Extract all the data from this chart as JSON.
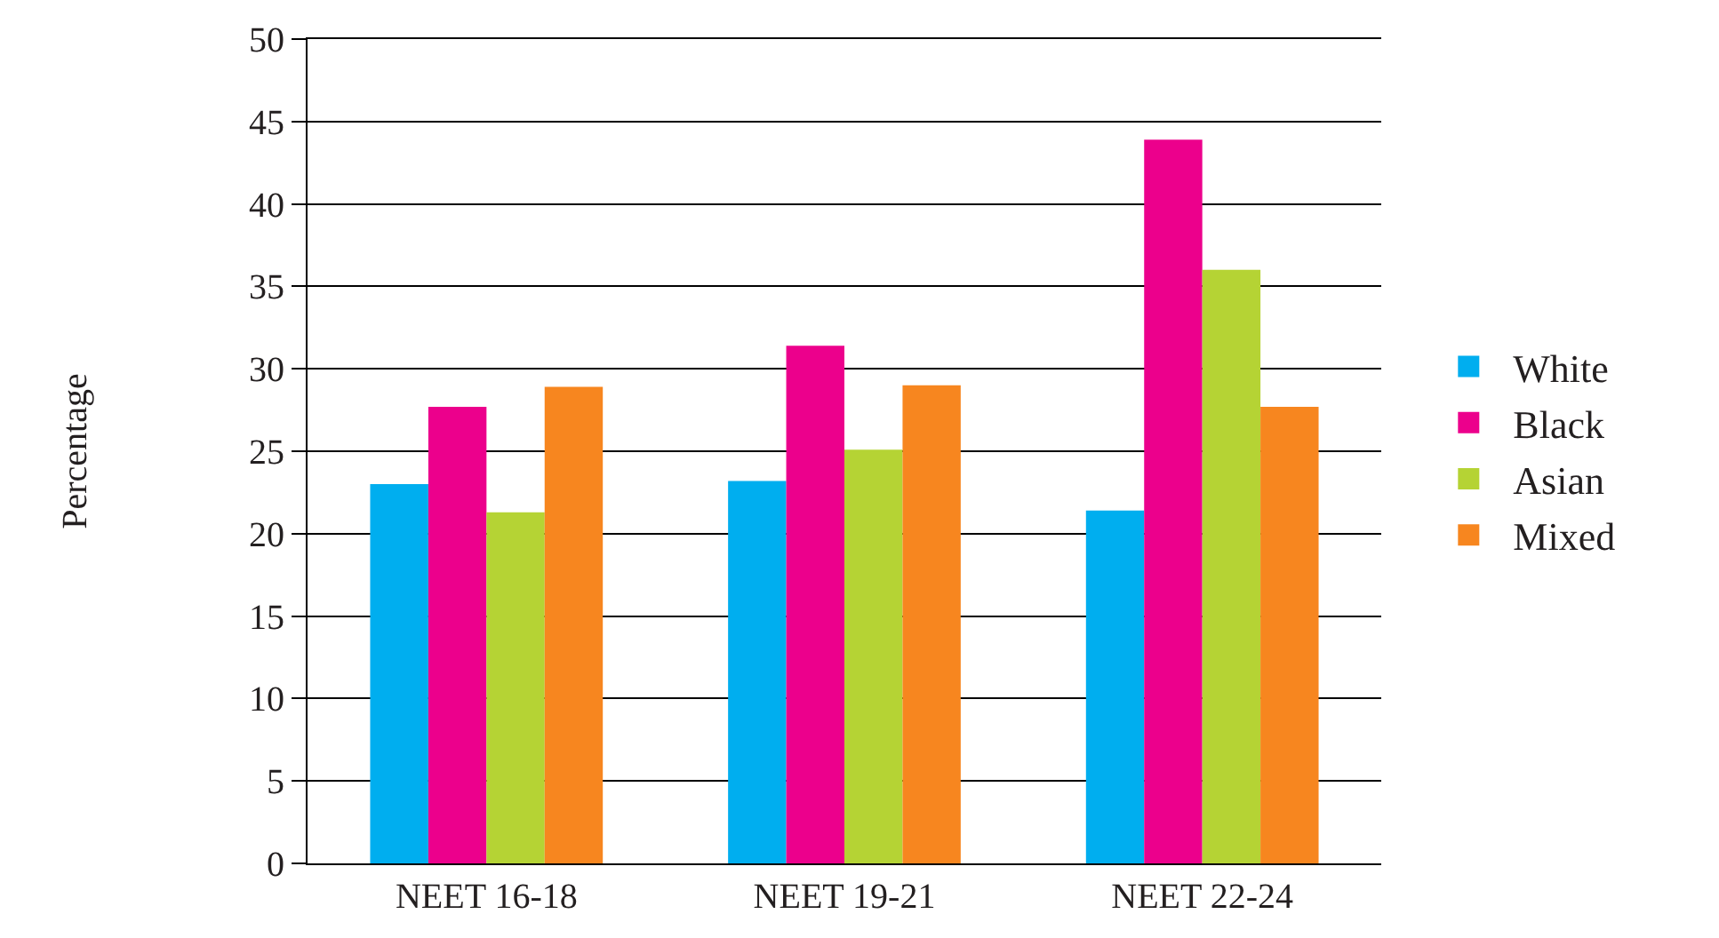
{
  "chart_data": {
    "type": "bar",
    "ylabel": "Percentage",
    "categories": [
      "NEET 16-18",
      "NEET 19-21",
      "NEET 22-24"
    ],
    "series": [
      {
        "name": "White",
        "color": "#00aeef",
        "values": [
          23.0,
          23.2,
          21.4
        ]
      },
      {
        "name": "Black",
        "color": "#ec008c",
        "values": [
          27.7,
          31.4,
          43.9
        ]
      },
      {
        "name": "Asian",
        "color": "#b5d334",
        "values": [
          21.3,
          25.1,
          36.0
        ]
      },
      {
        "name": "Mixed",
        "color": "#f7861f",
        "values": [
          28.9,
          29.0,
          27.7
        ]
      }
    ],
    "ylim": [
      0,
      50
    ],
    "yticks": [
      0,
      5,
      10,
      15,
      20,
      25,
      30,
      35,
      40,
      45,
      50
    ],
    "grid": "y",
    "legend": "right"
  }
}
